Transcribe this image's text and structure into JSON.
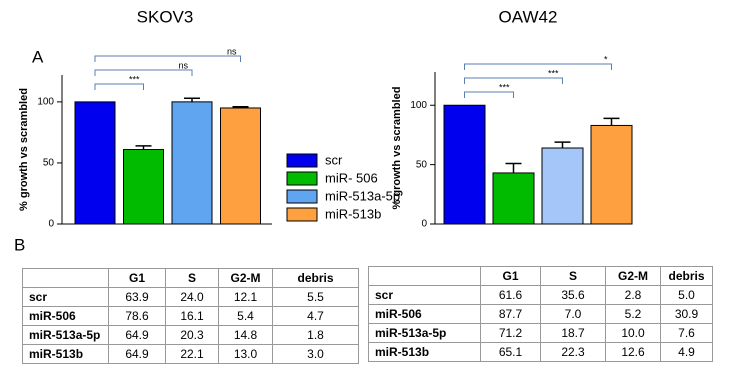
{
  "panel_labels": [
    "A",
    "B"
  ],
  "chart_data": [
    {
      "type": "bar",
      "title": "SKOV3",
      "y_label": "% growth vs scrambled",
      "categories": [
        "scr",
        "miR- 506",
        "miR-513a-5p",
        "miR-513b"
      ],
      "values": [
        100,
        61,
        100,
        95
      ],
      "errors": [
        0,
        3,
        3,
        1
      ],
      "colors": [
        "#0000ee",
        "#00bb00",
        "#5fa5f0",
        "#ffa040"
      ],
      "ylim": [
        0,
        122
      ],
      "yticks": [
        0,
        50,
        100
      ],
      "annotations": [
        "***",
        "ns",
        "ns"
      ],
      "legend": true
    },
    {
      "type": "bar",
      "title": "OAW42",
      "y_label": "% growth vs scrambled",
      "categories": [
        "scr",
        "miR- 506",
        "miR-513a-5p",
        "miR-513b"
      ],
      "values": [
        100,
        43,
        64,
        83
      ],
      "errors": [
        0,
        8,
        5,
        6
      ],
      "colors": [
        "#0000ee",
        "#00bb00",
        "#a4c6f8",
        "#ffa040"
      ],
      "ylim": [
        0,
        128
      ],
      "yticks": [
        0,
        50,
        100
      ],
      "annotations": [
        "***",
        "***",
        "*"
      ],
      "legend": false
    }
  ],
  "tables": [
    {
      "columns": [
        "G1",
        "S",
        "G2-M",
        "debris"
      ],
      "rows": [
        [
          "scr",
          "63.9",
          "24.0",
          "12.1",
          "5.5"
        ],
        [
          "miR-506",
          "78.6",
          "16.1",
          "5.4",
          "4.7"
        ],
        [
          "miR-513a-5p",
          "64.9",
          "20.3",
          "14.8",
          "1.8"
        ],
        [
          "miR-513b",
          "64.9",
          "22.1",
          "13.0",
          "3.0"
        ]
      ]
    },
    {
      "columns": [
        "G1",
        "S",
        "G2-M",
        "debris"
      ],
      "rows": [
        [
          "scr",
          "61.6",
          "35.6",
          "2.8",
          "5.0"
        ],
        [
          "miR-506",
          "87.7",
          "7.0",
          "5.2",
          "30.9"
        ],
        [
          "miR-513a-5p",
          "71.2",
          "18.7",
          "10.0",
          "7.6"
        ],
        [
          "miR-513b",
          "65.1",
          "22.3",
          "12.6",
          "4.9"
        ]
      ]
    }
  ]
}
